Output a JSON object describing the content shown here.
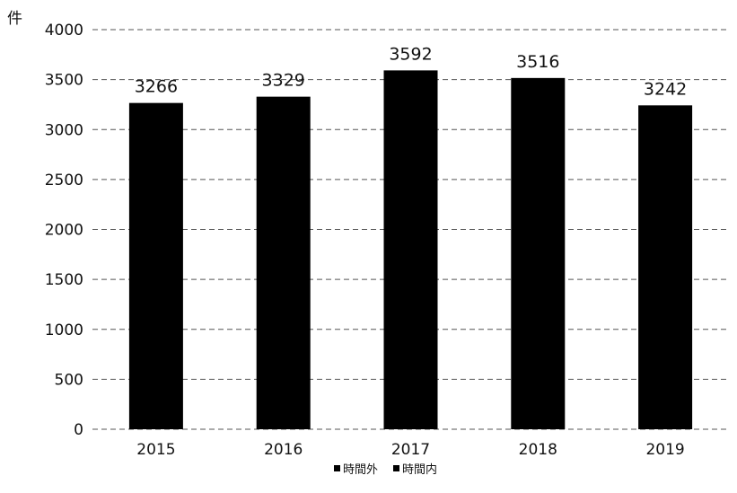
{
  "chart_data": {
    "type": "bar",
    "title": "",
    "ylabel": "件",
    "xlabel": "",
    "categories": [
      "2015",
      "2016",
      "2017",
      "2018",
      "2019"
    ],
    "series": [
      {
        "values": [
          3266,
          3329,
          3592,
          3516,
          3242
        ]
      }
    ],
    "data_labels": [
      "3266",
      "3329",
      "3592",
      "3516",
      "3242"
    ],
    "ylim": [
      0,
      4000
    ],
    "yticks": [
      0,
      500,
      1000,
      1500,
      2000,
      2500,
      3000,
      3500,
      4000
    ],
    "ytick_labels": [
      "0",
      "500",
      "1000",
      "1500",
      "2000",
      "2500",
      "3000",
      "3500",
      "4000"
    ],
    "grid": true,
    "legend": {
      "position": "bottom",
      "entries": [
        "時間外",
        "時間内"
      ]
    },
    "colors": {
      "bar": "#000000",
      "grid": "#555555",
      "text": "#111111"
    }
  }
}
